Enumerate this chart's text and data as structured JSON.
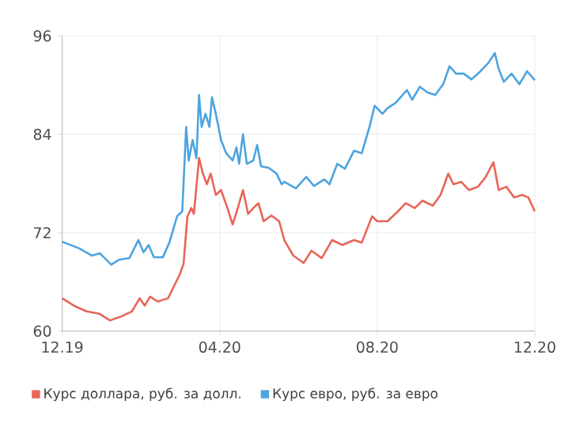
{
  "chart_data": {
    "type": "line",
    "xlim": [
      "2019-12-01",
      "2020-12-01"
    ],
    "xticks": [
      {
        "value": "2019-12-01",
        "label": "12.19"
      },
      {
        "value": "2020-04-01",
        "label": "04.20"
      },
      {
        "value": "2020-08-01",
        "label": "08.20"
      },
      {
        "value": "2020-12-01",
        "label": "12.20"
      }
    ],
    "ylim": [
      60,
      96
    ],
    "yticks": [
      60,
      72,
      84,
      96
    ],
    "grid": true,
    "legend": "bottom",
    "series": [
      {
        "name": "Курс доллара, руб. за долл.",
        "color": "#e8655a",
        "x": [
          "2019-12-01",
          "2019-12-10",
          "2019-12-20",
          "2019-12-30",
          "2020-01-07",
          "2020-01-16",
          "2020-01-24",
          "2020-01-30",
          "2020-02-03",
          "2020-02-07",
          "2020-02-13",
          "2020-02-21",
          "2020-02-26",
          "2020-03-01",
          "2020-03-04",
          "2020-03-07",
          "2020-03-10",
          "2020-03-12",
          "2020-03-16",
          "2020-03-19",
          "2020-03-22",
          "2020-03-25",
          "2020-03-29",
          "2020-04-02",
          "2020-04-07",
          "2020-04-11",
          "2020-04-15",
          "2020-04-19",
          "2020-04-23",
          "2020-04-27",
          "2020-05-01",
          "2020-05-05",
          "2020-05-11",
          "2020-05-17",
          "2020-05-21",
          "2020-05-28",
          "2020-06-05",
          "2020-06-11",
          "2020-06-19",
          "2020-06-27",
          "2020-07-05",
          "2020-07-14",
          "2020-07-20",
          "2020-07-28",
          "2020-08-01",
          "2020-08-09",
          "2020-08-17",
          "2020-08-23",
          "2020-08-30",
          "2020-09-05",
          "2020-09-13",
          "2020-09-19",
          "2020-09-25",
          "2020-09-29",
          "2020-10-05",
          "2020-10-11",
          "2020-10-18",
          "2020-10-24",
          "2020-10-30",
          "2020-11-03",
          "2020-11-09",
          "2020-11-15",
          "2020-11-21",
          "2020-11-26",
          "2020-12-01"
        ],
        "values": [
          64.0,
          63.1,
          62.4,
          62.1,
          61.3,
          61.8,
          62.4,
          64.0,
          63.1,
          64.2,
          63.6,
          64.0,
          65.6,
          66.9,
          68.2,
          74.0,
          75.0,
          74.3,
          81.1,
          79.2,
          77.9,
          79.2,
          76.6,
          77.2,
          75.0,
          73.0,
          75.0,
          77.2,
          74.3,
          75.0,
          75.6,
          73.4,
          74.1,
          73.4,
          71.1,
          69.2,
          68.3,
          69.8,
          68.9,
          71.1,
          70.5,
          71.1,
          70.8,
          74.0,
          73.4,
          73.4,
          74.6,
          75.6,
          75.0,
          75.9,
          75.3,
          76.6,
          79.2,
          77.9,
          78.2,
          77.2,
          77.6,
          78.8,
          80.6,
          77.2,
          77.6,
          76.3,
          76.6,
          76.3,
          74.6
        ]
      },
      {
        "name": "Курс евро, руб. за евро",
        "color": "#4da3e0",
        "x": [
          "2019-12-01",
          "2019-12-14",
          "2019-12-24",
          "2019-12-30",
          "2020-01-03",
          "2020-01-08",
          "2020-01-14",
          "2020-01-22",
          "2020-01-29",
          "2020-02-02",
          "2020-02-06",
          "2020-02-10",
          "2020-02-17",
          "2020-02-22",
          "2020-02-28",
          "2020-03-03",
          "2020-03-06",
          "2020-03-08",
          "2020-03-11",
          "2020-03-14",
          "2020-03-16",
          "2020-03-18",
          "2020-03-21",
          "2020-03-24",
          "2020-03-26",
          "2020-03-29",
          "2020-04-02",
          "2020-04-06",
          "2020-04-11",
          "2020-04-14",
          "2020-04-16",
          "2020-04-19",
          "2020-04-22",
          "2020-04-27",
          "2020-04-30",
          "2020-05-03",
          "2020-05-09",
          "2020-05-15",
          "2020-05-19",
          "2020-05-21",
          "2020-05-30",
          "2020-06-07",
          "2020-06-13",
          "2020-06-21",
          "2020-06-25",
          "2020-07-01",
          "2020-07-07",
          "2020-07-14",
          "2020-07-20",
          "2020-07-26",
          "2020-07-30",
          "2020-08-05",
          "2020-08-09",
          "2020-08-15",
          "2020-08-19",
          "2020-08-24",
          "2020-08-28",
          "2020-09-03",
          "2020-09-09",
          "2020-09-15",
          "2020-09-21",
          "2020-09-26",
          "2020-10-01",
          "2020-10-07",
          "2020-10-13",
          "2020-10-20",
          "2020-10-26",
          "2020-10-31",
          "2020-11-03",
          "2020-11-07",
          "2020-11-13",
          "2020-11-19",
          "2020-11-25",
          "2020-12-01"
        ],
        "values": [
          70.9,
          70.1,
          69.2,
          69.5,
          68.9,
          68.1,
          68.7,
          68.9,
          71.1,
          69.6,
          70.5,
          69.0,
          69.0,
          70.8,
          74.0,
          74.6,
          84.9,
          80.8,
          83.3,
          81.1,
          88.8,
          84.9,
          86.5,
          84.9,
          88.5,
          86.5,
          83.3,
          81.7,
          80.8,
          82.4,
          80.4,
          84.0,
          80.4,
          80.8,
          82.7,
          80.1,
          79.9,
          79.2,
          77.9,
          78.2,
          77.4,
          78.8,
          77.7,
          78.5,
          77.9,
          80.4,
          79.8,
          82.0,
          81.7,
          84.9,
          87.5,
          86.5,
          87.2,
          87.8,
          88.5,
          89.4,
          88.2,
          89.8,
          89.1,
          88.8,
          90.1,
          92.3,
          91.4,
          91.4,
          90.7,
          91.7,
          92.7,
          93.9,
          92.0,
          90.4,
          91.4,
          90.1,
          91.7,
          90.6
        ]
      }
    ]
  }
}
